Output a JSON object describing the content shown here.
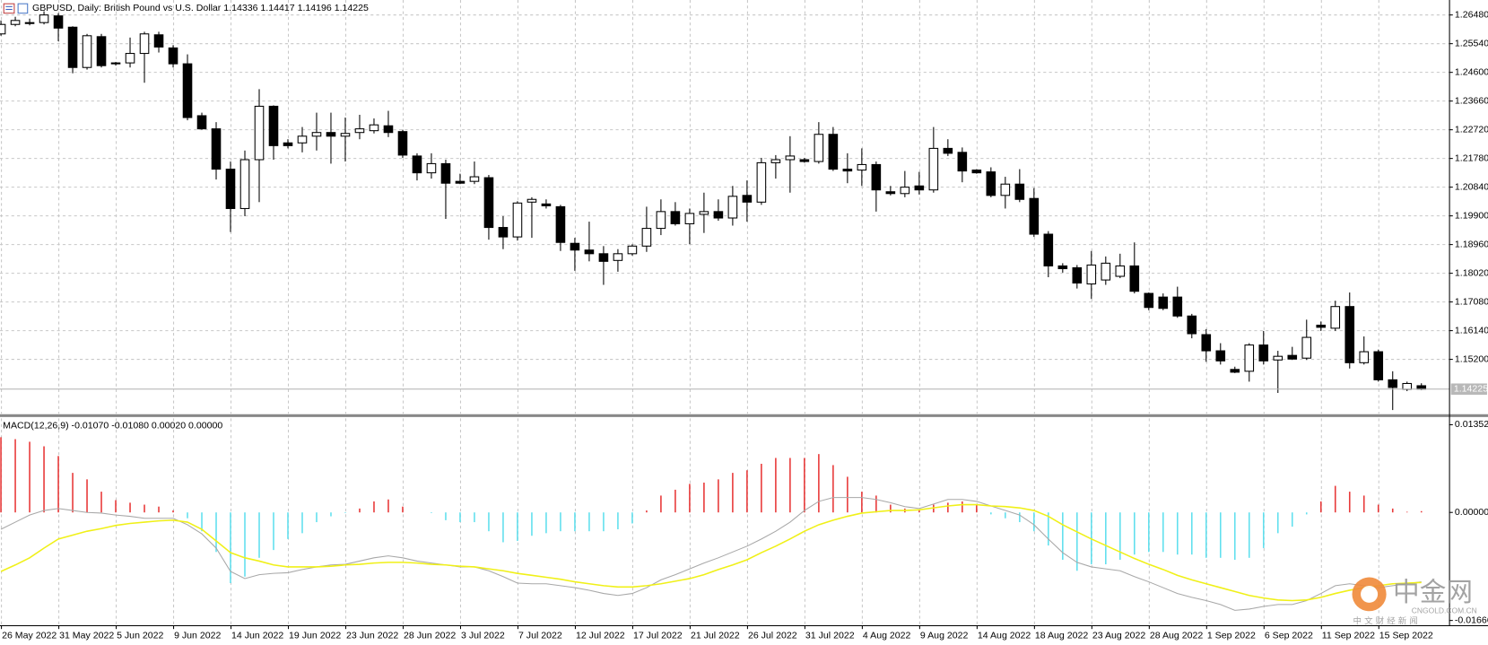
{
  "chart_data": [
    {
      "type": "candlestick",
      "title": "GBPUSD, Daily:  British Pound vs U.S. Dollar  1.14336 1.14417 1.14196 1.14225",
      "categories": [
        "26 May 2022",
        null,
        null,
        null,
        "31 May 2022",
        null,
        null,
        null,
        "5 Jun 2022",
        null,
        null,
        null,
        "9 Jun 2022",
        null,
        null,
        null,
        "14 Jun 2022",
        null,
        null,
        null,
        "19 Jun 2022",
        null,
        null,
        null,
        "23 Jun 2022",
        null,
        null,
        null,
        "28 Jun 2022",
        null,
        null,
        null,
        "3 Jul 2022",
        null,
        null,
        null,
        "7 Jul 2022",
        null,
        null,
        null,
        "12 Jul 2022",
        null,
        null,
        null,
        "17 Jul 2022",
        null,
        null,
        null,
        "21 Jul 2022",
        null,
        null,
        null,
        "26 Jul 2022",
        null,
        null,
        null,
        "31 Jul 2022",
        null,
        null,
        null,
        "4 Aug 2022",
        null,
        null,
        null,
        "9 Aug 2022",
        null,
        null,
        null,
        "14 Aug 2022",
        null,
        null,
        null,
        "18 Aug 2022",
        null,
        null,
        null,
        "23 Aug 2022",
        null,
        null,
        null,
        "28 Aug 2022",
        null,
        null,
        null,
        "1 Sep 2022",
        null,
        null,
        null,
        "6 Sep 2022",
        null,
        null,
        null,
        "11 Sep 2022",
        null,
        null,
        null,
        "15 Sep 2022",
        null,
        null,
        null
      ],
      "open": [
        1.2586,
        1.2617,
        1.262,
        1.2623,
        1.2645,
        1.2608,
        1.2476,
        1.2577,
        1.2491,
        1.2491,
        1.2522,
        1.2583,
        1.254,
        1.2488,
        1.2318,
        1.2275,
        1.2143,
        1.2014,
        1.2174,
        1.2349,
        1.2229,
        1.2229,
        1.2251,
        1.2263,
        1.2251,
        1.2263,
        1.2269,
        1.2285,
        1.2266,
        1.2186,
        1.2131,
        1.2161,
        1.2103,
        1.2103,
        1.2115,
        1.1952,
        1.1921,
        1.2035,
        1.2029,
        1.202,
        1.19,
        1.1878,
        1.1866,
        1.1844,
        1.1866,
        1.1891,
        1.1949,
        1.2004,
        1.1964,
        1.1995,
        1.2004,
        1.1983,
        1.2057,
        1.2035,
        1.2164,
        1.2174,
        1.2174,
        1.2168,
        1.2257,
        1.2143,
        1.214,
        1.2158,
        1.2069,
        1.2063,
        1.2088,
        1.2075,
        1.2211,
        1.2198,
        1.214,
        1.2134,
        1.2057,
        1.2094,
        1.2047,
        1.193,
        1.1826,
        1.182,
        1.1767,
        1.178,
        1.1792,
        1.1826,
        1.1736,
        1.1724,
        1.1724,
        1.1662,
        1.1601,
        1.1548,
        1.1487,
        1.1481,
        1.1567,
        1.1518,
        1.1533,
        1.1524,
        1.1632,
        1.1622,
        1.1693,
        1.1509,
        1.1545,
        1.1453,
        1.1422,
        1.14336
      ],
      "high": [
        1.263,
        1.2642,
        1.2636,
        1.266,
        1.2654,
        1.2611,
        1.2586,
        1.2586,
        1.2494,
        1.2574,
        1.2593,
        1.2593,
        1.2549,
        1.2519,
        1.2328,
        1.2297,
        1.2168,
        1.2204,
        1.2405,
        1.2352,
        1.2241,
        1.2281,
        1.2328,
        1.2328,
        1.2312,
        1.2321,
        1.2309,
        1.2334,
        1.2272,
        1.2195,
        1.2195,
        1.2174,
        1.2128,
        1.2168,
        1.2124,
        1.1989,
        1.2038,
        1.2051,
        1.2044,
        1.2026,
        1.1918,
        1.1971,
        1.1891,
        1.1881,
        1.1897,
        1.202,
        1.2044,
        1.2035,
        1.2014,
        1.2066,
        1.2044,
        1.2088,
        1.2106,
        1.218,
        1.2189,
        1.2251,
        1.218,
        1.2297,
        1.2281,
        1.2195,
        1.2211,
        1.2168,
        1.2088,
        1.2137,
        1.2134,
        1.2281,
        1.2241,
        1.2214,
        1.2143,
        1.2149,
        1.2118,
        1.2143,
        1.2081,
        1.194,
        1.1835,
        1.1829,
        1.1875,
        1.1857,
        1.1866,
        1.1903,
        1.1739,
        1.1736,
        1.1758,
        1.1669,
        1.1619,
        1.1573,
        1.1496,
        1.1573,
        1.1613,
        1.1548,
        1.1561,
        1.165,
        1.1644,
        1.1712,
        1.1739,
        1.1595,
        1.1552,
        1.1481,
        1.1447,
        1.14417
      ],
      "low": [
        1.258,
        1.2611,
        1.2614,
        1.2617,
        1.2562,
        1.2457,
        1.2469,
        1.2476,
        1.2482,
        1.2476,
        1.2426,
        1.2525,
        1.2476,
        1.2303,
        1.2272,
        1.2109,
        1.1937,
        1.1989,
        1.2035,
        1.2174,
        1.2211,
        1.2198,
        1.2204,
        1.2161,
        1.2168,
        1.2241,
        1.226,
        1.2248,
        1.218,
        1.2106,
        1.2112,
        1.198,
        1.2094,
        1.2094,
        1.1912,
        1.1881,
        1.1909,
        1.1918,
        1.2014,
        1.1875,
        1.181,
        1.1841,
        1.1764,
        1.1807,
        1.186,
        1.1872,
        1.1927,
        1.1958,
        1.1897,
        1.1934,
        1.1974,
        1.1958,
        1.1971,
        1.2026,
        1.2112,
        1.2066,
        1.2164,
        1.2161,
        1.2137,
        1.2097,
        1.2088,
        1.2004,
        1.2057,
        1.2051,
        1.206,
        1.2066,
        1.2186,
        1.21,
        1.2128,
        1.2051,
        1.2014,
        1.2035,
        1.1921,
        1.1789,
        1.1804,
        1.1752,
        1.1718,
        1.1764,
        1.1786,
        1.1736,
        1.1681,
        1.1681,
        1.1656,
        1.1589,
        1.1512,
        1.1503,
        1.1475,
        1.1447,
        1.1503,
        1.141,
        1.1518,
        1.1518,
        1.1613,
        1.1613,
        1.149,
        1.1503,
        1.1447,
        1.1354,
        1.1416,
        1.14196
      ],
      "close": [
        1.2617,
        1.263,
        1.2623,
        1.2648,
        1.2605,
        1.2476,
        1.258,
        1.2482,
        1.2488,
        1.2522,
        1.2586,
        1.2543,
        1.2488,
        1.2312,
        1.2275,
        1.2143,
        1.2014,
        1.2174,
        1.2349,
        1.222,
        1.222,
        1.2251,
        1.2263,
        1.2251,
        1.226,
        1.2275,
        1.2288,
        1.2263,
        1.2189,
        1.2131,
        1.2161,
        1.2097,
        1.2097,
        1.2118,
        1.1952,
        1.1921,
        1.2032,
        1.2044,
        1.2023,
        1.1903,
        1.1878,
        1.1866,
        1.1841,
        1.1866,
        1.1891,
        1.1949,
        1.2004,
        1.1964,
        1.1998,
        1.2004,
        1.1983,
        1.2054,
        1.2035,
        1.2164,
        1.2174,
        1.2186,
        1.2168,
        1.2257,
        1.2143,
        1.2137,
        1.2158,
        1.2075,
        1.2063,
        1.2084,
        1.2075,
        1.2211,
        1.2195,
        1.2137,
        1.2131,
        1.2057,
        1.2094,
        1.2044,
        1.193,
        1.1826,
        1.1817,
        1.177,
        1.1829,
        1.1835,
        1.1826,
        1.1743,
        1.169,
        1.1687,
        1.1662,
        1.1604,
        1.1548,
        1.1515,
        1.1478,
        1.1567,
        1.1515,
        1.153,
        1.1521,
        1.1592,
        1.1625,
        1.1693,
        1.1509,
        1.1545,
        1.1453,
        1.1428,
        1.1441,
        1.14225
      ],
      "up_color": "#ffffff",
      "down_color": "#000000",
      "wick_color": "#000000",
      "ylim": [
        1.1342,
        1.2697
      ],
      "yticks": [
        {
          "value": 1.2648,
          "label": "1.26480"
        },
        {
          "value": 1.2554,
          "label": "1.25540"
        },
        {
          "value": 1.246,
          "label": "1.24600"
        },
        {
          "value": 1.2366,
          "label": "1.23660"
        },
        {
          "value": 1.2272,
          "label": "1.22720"
        },
        {
          "value": 1.2178,
          "label": "1.21780"
        },
        {
          "value": 1.2084,
          "label": "1.20840"
        },
        {
          "value": 1.199,
          "label": "1.19900"
        },
        {
          "value": 1.1896,
          "label": "1.18960"
        },
        {
          "value": 1.1802,
          "label": "1.18020"
        },
        {
          "value": 1.1708,
          "label": "1.17080"
        },
        {
          "value": 1.1614,
          "label": "1.16140"
        },
        {
          "value": 1.152,
          "label": "1.15200"
        }
      ],
      "last_price": {
        "value": 1.14225,
        "label": "1.14225"
      },
      "grid": true
    },
    {
      "type": "macd",
      "title": "MACD(12,26,9) -0.01070 -0.01080 0.00020 0.00000",
      "histogram": {
        "positive_color": "#e83a3a",
        "negative_color": "#62e0ee",
        "values": [
          0.0116,
          0.0113,
          0.0109,
          0.0102,
          0.0087,
          0.0061,
          0.0051,
          0.0032,
          0.0019,
          0.0015,
          0.0012,
          0.0009,
          0.0003,
          -0.0009,
          -0.0029,
          -0.0061,
          -0.0109,
          -0.0099,
          -0.007,
          -0.0058,
          -0.0041,
          -0.0032,
          -0.0015,
          -0.0006,
          -0.0001,
          0.0006,
          0.0017,
          0.002,
          0.0009,
          0,
          -0.0001,
          -0.0012,
          -0.0015,
          -0.0015,
          -0.0029,
          -0.0046,
          -0.0044,
          -0.0036,
          -0.0032,
          -0.0029,
          -0.0029,
          -0.0029,
          -0.0029,
          -0.0026,
          -0.0017,
          0.0003,
          0.0026,
          0.0035,
          0.0044,
          0.0046,
          0.0051,
          0.0061,
          0.0065,
          0.0075,
          0.0084,
          0.0084,
          0.0084,
          0.009,
          0.0073,
          0.0055,
          0.0032,
          0.0026,
          0.0012,
          0.0006,
          0.0003,
          0.0012,
          0.0015,
          0.0017,
          0.0012,
          -0.0003,
          -0.0009,
          -0.0015,
          -0.0029,
          -0.0051,
          -0.0073,
          -0.009,
          -0.008,
          -0.008,
          -0.0073,
          -0.0065,
          -0.0061,
          -0.0061,
          -0.0065,
          -0.0065,
          -0.007,
          -0.007,
          -0.0073,
          -0.007,
          -0.0055,
          -0.0032,
          -0.0022,
          -0.0003,
          0.0017,
          0.0041,
          0.0032,
          0.0026,
          0.0012,
          0.0006,
          0.0001,
          0.0002
        ]
      },
      "lines": [
        {
          "color": "#a8a8a8",
          "values": [
            -0.0026,
            -0.0015,
            -0.0004,
            0.0003,
            0.0006,
            0.0003,
            0,
            -0.0001,
            -0.0004,
            -0.0006,
            -0.0009,
            -0.0009,
            -0.0009,
            -0.0019,
            -0.0033,
            -0.0055,
            -0.0091,
            -0.0102,
            -0.0096,
            -0.0094,
            -0.0093,
            -0.0088,
            -0.0084,
            -0.0081,
            -0.008,
            -0.0075,
            -0.007,
            -0.0067,
            -0.007,
            -0.0075,
            -0.0078,
            -0.0081,
            -0.0084,
            -0.0084,
            -0.009,
            -0.0099,
            -0.0109,
            -0.011,
            -0.011,
            -0.0113,
            -0.0116,
            -0.012,
            -0.0125,
            -0.0128,
            -0.0125,
            -0.0116,
            -0.0104,
            -0.0096,
            -0.0087,
            -0.0078,
            -0.007,
            -0.0061,
            -0.0052,
            -0.0041,
            -0.0029,
            -0.0015,
            0.0003,
            0.0017,
            0.0023,
            0.0023,
            0.0023,
            0.002,
            0.0015,
            0.0009,
            0.0006,
            0.0013,
            0.002,
            0.002,
            0.0017,
            0.001,
            0.0003,
            -0.0004,
            -0.0019,
            -0.0041,
            -0.0062,
            -0.0077,
            -0.0084,
            -0.0087,
            -0.009,
            -0.0099,
            -0.0107,
            -0.0116,
            -0.0125,
            -0.0131,
            -0.0136,
            -0.0142,
            -0.0151,
            -0.0149,
            -0.0145,
            -0.0142,
            -0.0142,
            -0.0136,
            -0.0125,
            -0.0113,
            -0.011,
            -0.0113,
            -0.0116,
            -0.0113,
            -0.011,
            -0.0107
          ]
        },
        {
          "color": "#f0f018",
          "values": [
            -0.0091,
            -0.0081,
            -0.007,
            -0.0055,
            -0.0041,
            -0.0035,
            -0.0029,
            -0.0025,
            -0.002,
            -0.0017,
            -0.0015,
            -0.0013,
            -0.0012,
            -0.0015,
            -0.0026,
            -0.0044,
            -0.0062,
            -0.007,
            -0.0075,
            -0.0081,
            -0.0084,
            -0.0084,
            -0.0084,
            -0.0083,
            -0.0081,
            -0.008,
            -0.0078,
            -0.0077,
            -0.0077,
            -0.0078,
            -0.008,
            -0.0081,
            -0.0083,
            -0.0084,
            -0.0087,
            -0.009,
            -0.0094,
            -0.0097,
            -0.01,
            -0.0103,
            -0.0107,
            -0.011,
            -0.0113,
            -0.0115,
            -0.0115,
            -0.0113,
            -0.011,
            -0.0106,
            -0.0102,
            -0.0096,
            -0.0088,
            -0.0081,
            -0.0073,
            -0.0062,
            -0.0052,
            -0.0041,
            -0.0029,
            -0.0019,
            -0.0012,
            -0.0006,
            -0.0001,
            0.0001,
            0.0003,
            0.0003,
            0.0004,
            0.0007,
            0.001,
            0.0012,
            0.0012,
            0.001,
            0.0009,
            0.0007,
            0.0003,
            -0.0006,
            -0.0019,
            -0.003,
            -0.0041,
            -0.0051,
            -0.0061,
            -0.0071,
            -0.008,
            -0.0088,
            -0.0097,
            -0.0104,
            -0.011,
            -0.0116,
            -0.0122,
            -0.0128,
            -0.0132,
            -0.0135,
            -0.0136,
            -0.0135,
            -0.0131,
            -0.0125,
            -0.012,
            -0.0116,
            -0.0113,
            -0.011,
            -0.0109,
            -0.0108
          ]
        }
      ],
      "ylim": [
        -0.0174,
        0.0145
      ],
      "yticks": [
        {
          "value": 0.01352,
          "label": "0.01352"
        },
        {
          "value": 0,
          "label": "0.00000"
        },
        {
          "value": -0.01666,
          "label": "-0.01666"
        }
      ],
      "grid": true
    }
  ],
  "watermark": {
    "brand": "中金网",
    "site": "CNGOLD.COM.CN",
    "tagline": "中 文 财 经 新 闻"
  }
}
